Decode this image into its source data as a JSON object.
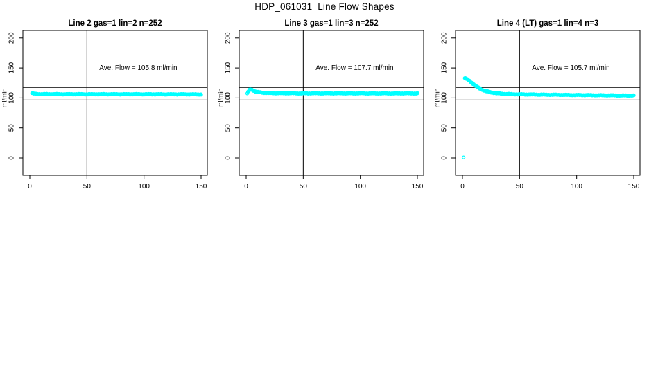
{
  "page": {
    "title": "HDP_061031  Line Flow Shapes"
  },
  "colors": {
    "background": "#ffffff",
    "axis": "#000000",
    "data_point": "#00ffff"
  },
  "chart_data": [
    {
      "type": "scatter",
      "title": "Line 2 gas=1 lin=2 n=252",
      "annotation": "Ave. Flow =  105.8  ml/min",
      "ave_flow_ml_min": 105.8,
      "n": 252,
      "xlabel": "",
      "ylabel": "ml/min",
      "x_ticks": [
        0,
        50,
        100,
        150
      ],
      "y_ticks": [
        0,
        50,
        100,
        150,
        200
      ],
      "xlim": [
        -6,
        156
      ],
      "ylim": [
        -29,
        212
      ],
      "grid": false,
      "legend": "none",
      "marker": "open-circle",
      "marker_color": "#00ffff",
      "reference_lines": {
        "horizontal_y": [
          117.5,
          96.5
        ],
        "vertical_x": [
          50
        ]
      },
      "annotation_anchor_xy": [
        95,
        150
      ],
      "series": [
        {
          "name": "flow-trace",
          "dense": true,
          "points": [
            [
              2,
              108
            ],
            [
              3,
              107.4
            ],
            [
              4,
              107
            ],
            [
              6,
              106.7
            ],
            [
              10,
              106.4
            ],
            [
              20,
              106.3
            ],
            [
              40,
              106.2
            ],
            [
              60,
              106.2
            ],
            [
              80,
              106.2
            ],
            [
              100,
              106.2
            ],
            [
              120,
              106.1
            ],
            [
              135,
              106
            ],
            [
              150,
              106
            ]
          ]
        }
      ]
    },
    {
      "type": "scatter",
      "title": "Line 3 gas=1 lin=3 n=252",
      "annotation": "Ave. Flow =  107.7  ml/min",
      "ave_flow_ml_min": 107.7,
      "n": 252,
      "xlabel": "",
      "ylabel": "ml/min",
      "x_ticks": [
        0,
        50,
        100,
        150
      ],
      "y_ticks": [
        0,
        50,
        100,
        150,
        200
      ],
      "xlim": [
        -6,
        156
      ],
      "ylim": [
        -29,
        212
      ],
      "grid": false,
      "legend": "none",
      "marker": "open-circle",
      "marker_color": "#00ffff",
      "reference_lines": {
        "horizontal_y": [
          117.5,
          96.5
        ],
        "vertical_x": [
          50
        ]
      },
      "annotation_anchor_xy": [
        95,
        150
      ],
      "series": [
        {
          "name": "flow-trace",
          "dense": true,
          "points": [
            [
              1,
              107.5
            ],
            [
              2,
              111
            ],
            [
              3,
              113.5
            ],
            [
              4,
              114
            ],
            [
              5,
              113.5
            ],
            [
              6,
              112.5
            ],
            [
              8,
              111
            ],
            [
              10,
              110
            ],
            [
              12,
              109.3
            ],
            [
              15,
              108.7
            ],
            [
              20,
              108.2
            ],
            [
              30,
              107.9
            ],
            [
              50,
              107.7
            ],
            [
              80,
              107.7
            ],
            [
              120,
              107.6
            ],
            [
              150,
              107.6
            ]
          ]
        }
      ]
    },
    {
      "type": "scatter",
      "title": "Line 4 (LT) gas=1 lin=4 n=3",
      "annotation": "Ave. Flow =  105.7  ml/min",
      "ave_flow_ml_min": 105.7,
      "n": 3,
      "xlabel": "",
      "ylabel": "ml/min",
      "x_ticks": [
        0,
        50,
        100,
        150
      ],
      "y_ticks": [
        0,
        50,
        100,
        150,
        200
      ],
      "xlim": [
        -6,
        156
      ],
      "ylim": [
        -29,
        212
      ],
      "grid": false,
      "legend": "none",
      "marker": "open-circle",
      "marker_color": "#00ffff",
      "reference_lines": {
        "horizontal_y": [
          117.5,
          96.5
        ],
        "vertical_x": [
          50
        ]
      },
      "annotation_anchor_xy": [
        95,
        150
      ],
      "series": [
        {
          "name": "flow-trace",
          "dense": true,
          "points": [
            [
              2,
              133
            ],
            [
              3,
              132.3
            ],
            [
              4,
              131.2
            ],
            [
              5,
              130
            ],
            [
              6,
              128.6
            ],
            [
              8,
              125.5
            ],
            [
              10,
              122.5
            ],
            [
              12,
              119.5
            ],
            [
              15,
              115.8
            ],
            [
              18,
              113
            ],
            [
              21,
              111
            ],
            [
              25,
              109.3
            ],
            [
              30,
              107.8
            ],
            [
              35,
              107
            ],
            [
              40,
              106.5
            ],
            [
              50,
              106
            ],
            [
              60,
              105.7
            ],
            [
              70,
              105.5
            ],
            [
              80,
              105.3
            ],
            [
              90,
              105.1
            ],
            [
              100,
              104.9
            ],
            [
              110,
              104.7
            ],
            [
              120,
              104.5
            ],
            [
              130,
              104.3
            ],
            [
              140,
              104.1
            ],
            [
              150,
              104
            ]
          ]
        },
        {
          "name": "outlier-point",
          "dense": false,
          "points": [
            [
              1,
              1
            ]
          ]
        }
      ]
    }
  ]
}
